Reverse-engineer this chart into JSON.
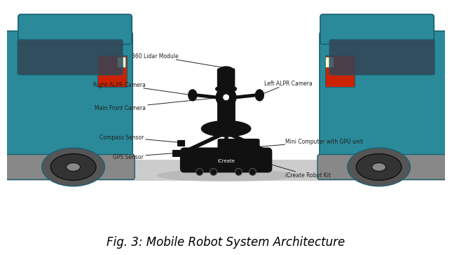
{
  "title": "Fig. 3: Mobile Robot System Architecture",
  "title_fontsize": 13,
  "bg_color": "#ffffff",
  "labels": {
    "lidar": "360 Lidar Module",
    "right_alpr": "Right ALPR Camera",
    "left_alpr": "Left ALPR Camera",
    "main_front": "Main Front Camera",
    "compass": "Compass Sensor",
    "gps": "GPS Sensor",
    "mini_computer": "Mini Computer with GPU unit",
    "icreate_label": "iCreate",
    "icreate_kit": "iCreate Robot Kit"
  },
  "robot_color": "#111111",
  "car_teal": "#2a8a9a",
  "car_dark": "#1a6070",
  "car_wheel": "#333333",
  "car_light_red": "#cc2200",
  "car_light_cream": "#ffffcc",
  "annotation_color": "#222222",
  "text_color": "#222222",
  "label_fontsize": 5.5,
  "caption_fontsize": 12
}
